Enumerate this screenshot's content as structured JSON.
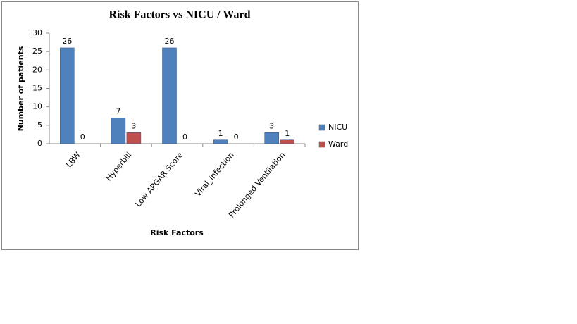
{
  "chart_data": {
    "type": "bar",
    "title": "Risk Factors vs NICU / Ward",
    "x_label": "Risk Factors",
    "y_label": "Number of patients",
    "categories": [
      "LBW",
      "Hyperbili",
      "Low APGAR Score",
      "Viral_Infection",
      "Prolonged Ventilation"
    ],
    "series": [
      {
        "name": "NICU",
        "color": "#4f81bd",
        "values": [
          26,
          7,
          26,
          1,
          3
        ]
      },
      {
        "name": "Ward",
        "color": "#c0504d",
        "values": [
          0,
          3,
          0,
          0,
          1
        ]
      }
    ],
    "ylim": [
      0,
      30
    ],
    "yticks": [
      0,
      5,
      10,
      15,
      20,
      25,
      30
    ],
    "grid": false,
    "legend": "right"
  }
}
